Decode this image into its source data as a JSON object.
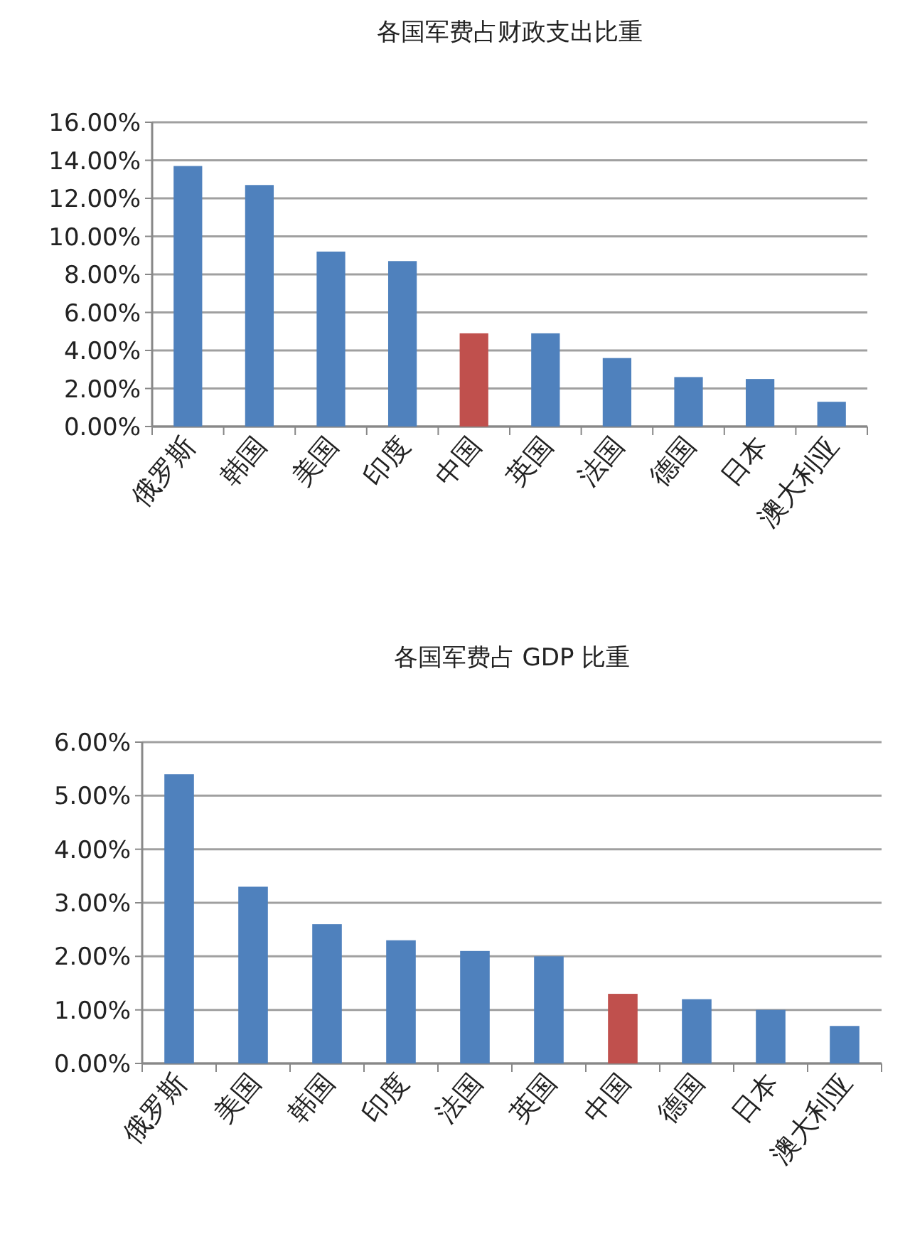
{
  "chart_data": [
    {
      "type": "bar",
      "title": "各国军费占财政支出比重",
      "categories": [
        "俄罗斯",
        "韩国",
        "美国",
        "印度",
        "中国",
        "英国",
        "法国",
        "德国",
        "日本",
        "澳大利亚"
      ],
      "values": [
        13.7,
        12.7,
        9.2,
        8.7,
        4.9,
        4.9,
        3.6,
        2.6,
        2.5,
        1.3
      ],
      "colors": [
        "#4f81bd",
        "#4f81bd",
        "#4f81bd",
        "#4f81bd",
        "#c0504d",
        "#4f81bd",
        "#4f81bd",
        "#4f81bd",
        "#4f81bd",
        "#4f81bd"
      ],
      "ylim": [
        0,
        16
      ],
      "yticks": [
        {
          "value": 0,
          "label": "0.00%"
        },
        {
          "value": 2,
          "label": "2.00%"
        },
        {
          "value": 4,
          "label": "4.00%"
        },
        {
          "value": 6,
          "label": "6.00%"
        },
        {
          "value": 8,
          "label": "8.00%"
        },
        {
          "value": 10,
          "label": "10.00%"
        },
        {
          "value": 12,
          "label": "12.00%"
        },
        {
          "value": 14,
          "label": "14.00%"
        },
        {
          "value": 16,
          "label": "16.00%"
        }
      ],
      "grid": "y"
    },
    {
      "type": "bar",
      "title": "各国军费占 GDP 比重",
      "categories": [
        "俄罗斯",
        "美国",
        "韩国",
        "印度",
        "法国",
        "英国",
        "中国",
        "德国",
        "日本",
        "澳大利亚"
      ],
      "values": [
        5.4,
        3.3,
        2.6,
        2.3,
        2.1,
        2.0,
        1.3,
        1.2,
        1.0,
        0.7
      ],
      "colors": [
        "#4f81bd",
        "#4f81bd",
        "#4f81bd",
        "#4f81bd",
        "#4f81bd",
        "#4f81bd",
        "#c0504d",
        "#4f81bd",
        "#4f81bd",
        "#4f81bd"
      ],
      "ylim": [
        0,
        6
      ],
      "yticks": [
        {
          "value": 0,
          "label": "0.00%"
        },
        {
          "value": 1,
          "label": "1.00%"
        },
        {
          "value": 2,
          "label": "2.00%"
        },
        {
          "value": 3,
          "label": "3.00%"
        },
        {
          "value": 4,
          "label": "4.00%"
        },
        {
          "value": 5,
          "label": "5.00%"
        },
        {
          "value": 6,
          "label": "6.00%"
        }
      ],
      "grid": "y"
    }
  ]
}
